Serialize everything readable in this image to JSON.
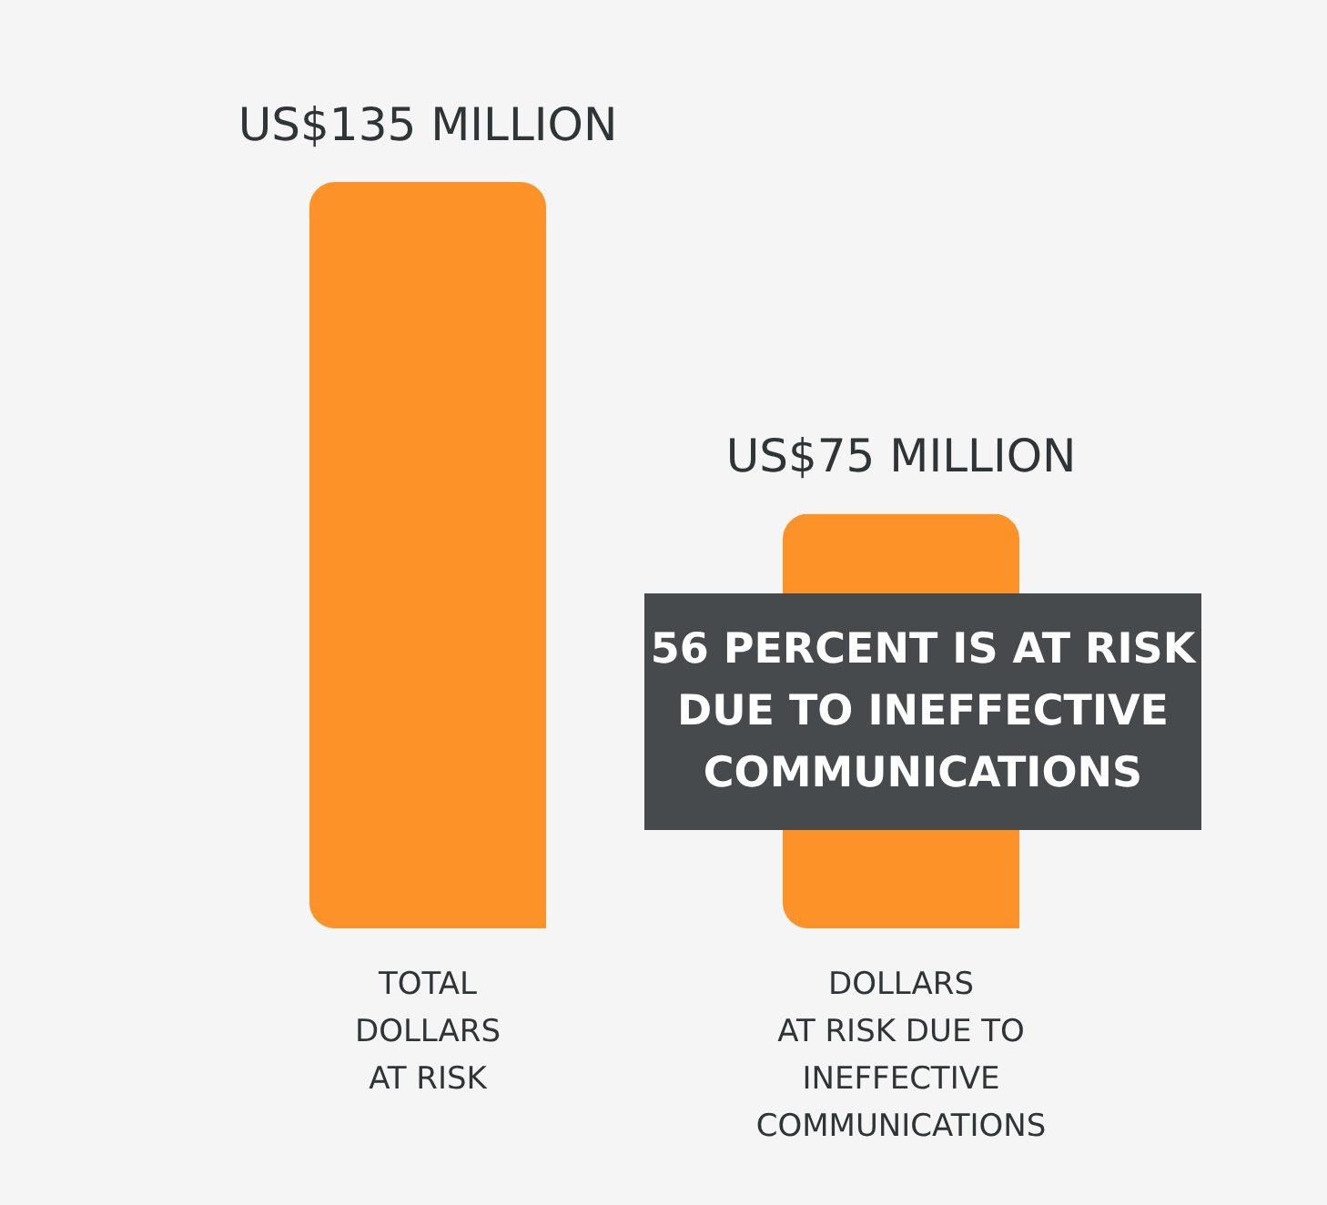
{
  "chart_data": {
    "type": "bar",
    "categories": [
      "TOTAL\nDOLLARS\nAT RISK",
      "DOLLARS\nAT RISK DUE TO\nINEFFECTIVE\nCOMMUNICATIONS"
    ],
    "values": [
      135,
      75
    ],
    "value_labels": [
      "US$135 MILLION",
      "US$75 MILLION"
    ],
    "color": "#fd9228",
    "annotations": [
      "56 PERCENT IS AT RISK\nDUE TO INEFFECTIVE\nCOMMUNICATIONS"
    ]
  }
}
